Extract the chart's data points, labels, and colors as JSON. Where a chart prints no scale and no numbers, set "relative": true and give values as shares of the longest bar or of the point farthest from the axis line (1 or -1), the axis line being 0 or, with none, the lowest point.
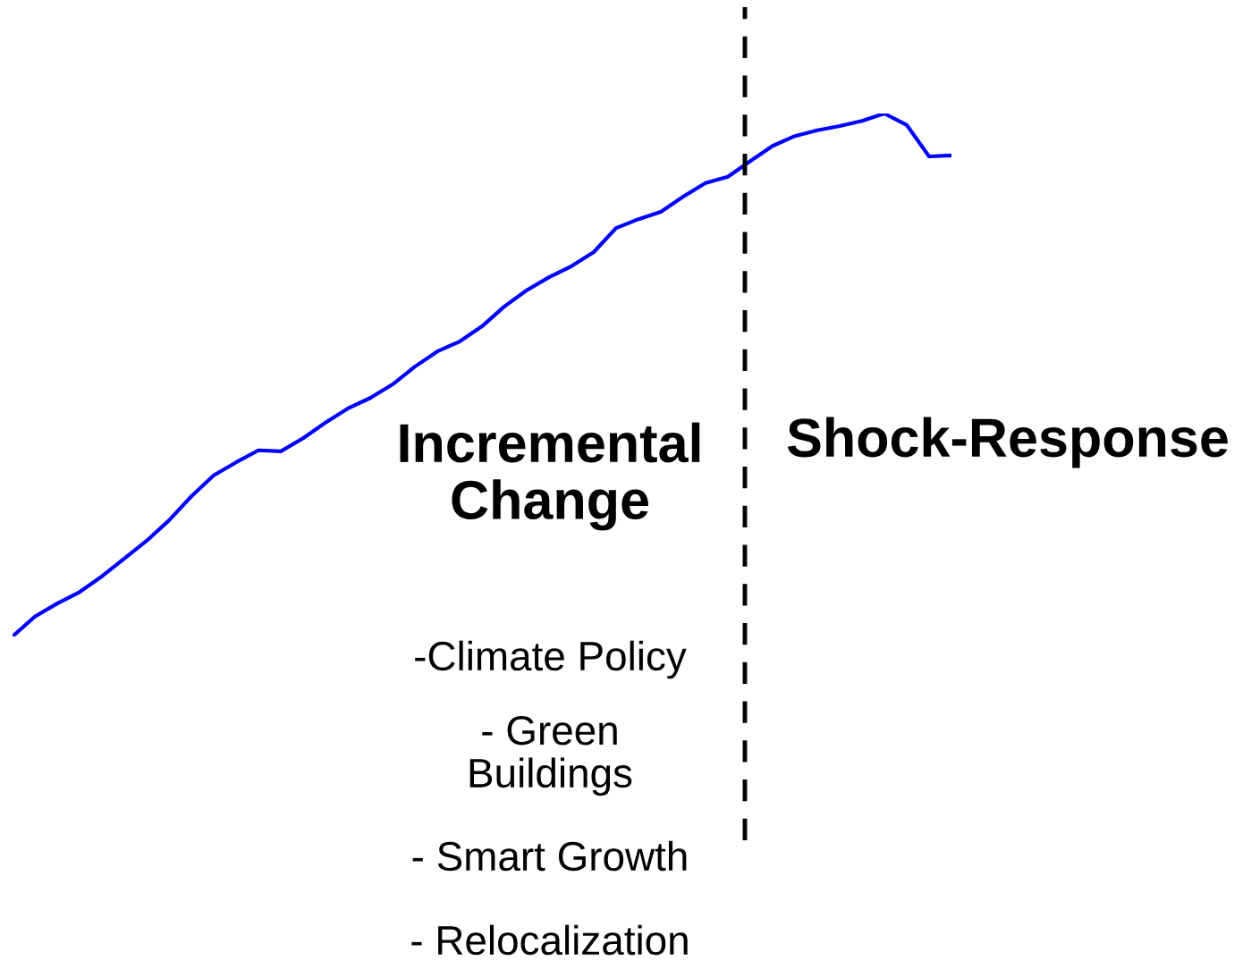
{
  "chart_data": {
    "type": "line",
    "relative": true,
    "categories": [
      null,
      null,
      null,
      null,
      null,
      null,
      null,
      null,
      null,
      null,
      null,
      null,
      null,
      null,
      null,
      null,
      null,
      null,
      null,
      null,
      null,
      null,
      null,
      null,
      null,
      null,
      null,
      null,
      null,
      null,
      null,
      null,
      null,
      null,
      null,
      null,
      null,
      null,
      null,
      null,
      null,
      null,
      null
    ],
    "series": [
      {
        "color": "#0000ff",
        "values": [
          0,
          0.038,
          0.063,
          0.085,
          0.115,
          0.149,
          0.183,
          0.222,
          0.268,
          0.308,
          0.333,
          0.356,
          0.354,
          0.379,
          0.409,
          0.436,
          0.456,
          0.482,
          0.516,
          0.545,
          0.564,
          0.593,
          0.631,
          0.662,
          0.687,
          0.708,
          0.735,
          0.781,
          0.798,
          0.812,
          0.841,
          0.867,
          0.879,
          0.909,
          0.938,
          0.957,
          0.968,
          0.976,
          0.986,
          1,
          0.978,
          0.918,
          0.92
        ]
      }
    ],
    "annotations": [
      "Incremental Change",
      "Shock-Response",
      "-Climate Policy",
      "- Green Buildings",
      "- Smart Growth",
      "- Relocalization"
    ]
  }
}
